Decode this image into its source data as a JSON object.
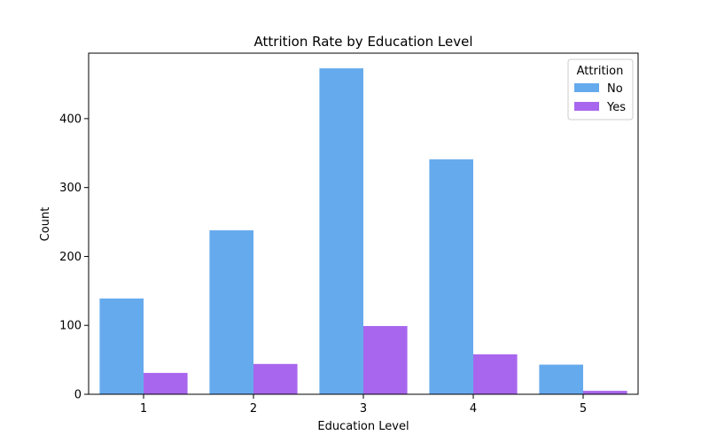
{
  "chart_data": {
    "type": "bar",
    "title": "Attrition Rate by Education Level",
    "xlabel": "Education Level",
    "ylabel": "Count",
    "categories": [
      "1",
      "2",
      "3",
      "4",
      "5"
    ],
    "ylim": [
      0,
      495
    ],
    "yticks": [
      0,
      100,
      200,
      300,
      400
    ],
    "grid": false,
    "legend": {
      "title": "Attrition",
      "placement": "top-right"
    },
    "series": [
      {
        "name": "No",
        "color": "#66aaee",
        "values": [
          139,
          238,
          473,
          341,
          43
        ]
      },
      {
        "name": "Yes",
        "color": "#a866ee",
        "values": [
          31,
          44,
          99,
          58,
          5
        ]
      }
    ]
  }
}
